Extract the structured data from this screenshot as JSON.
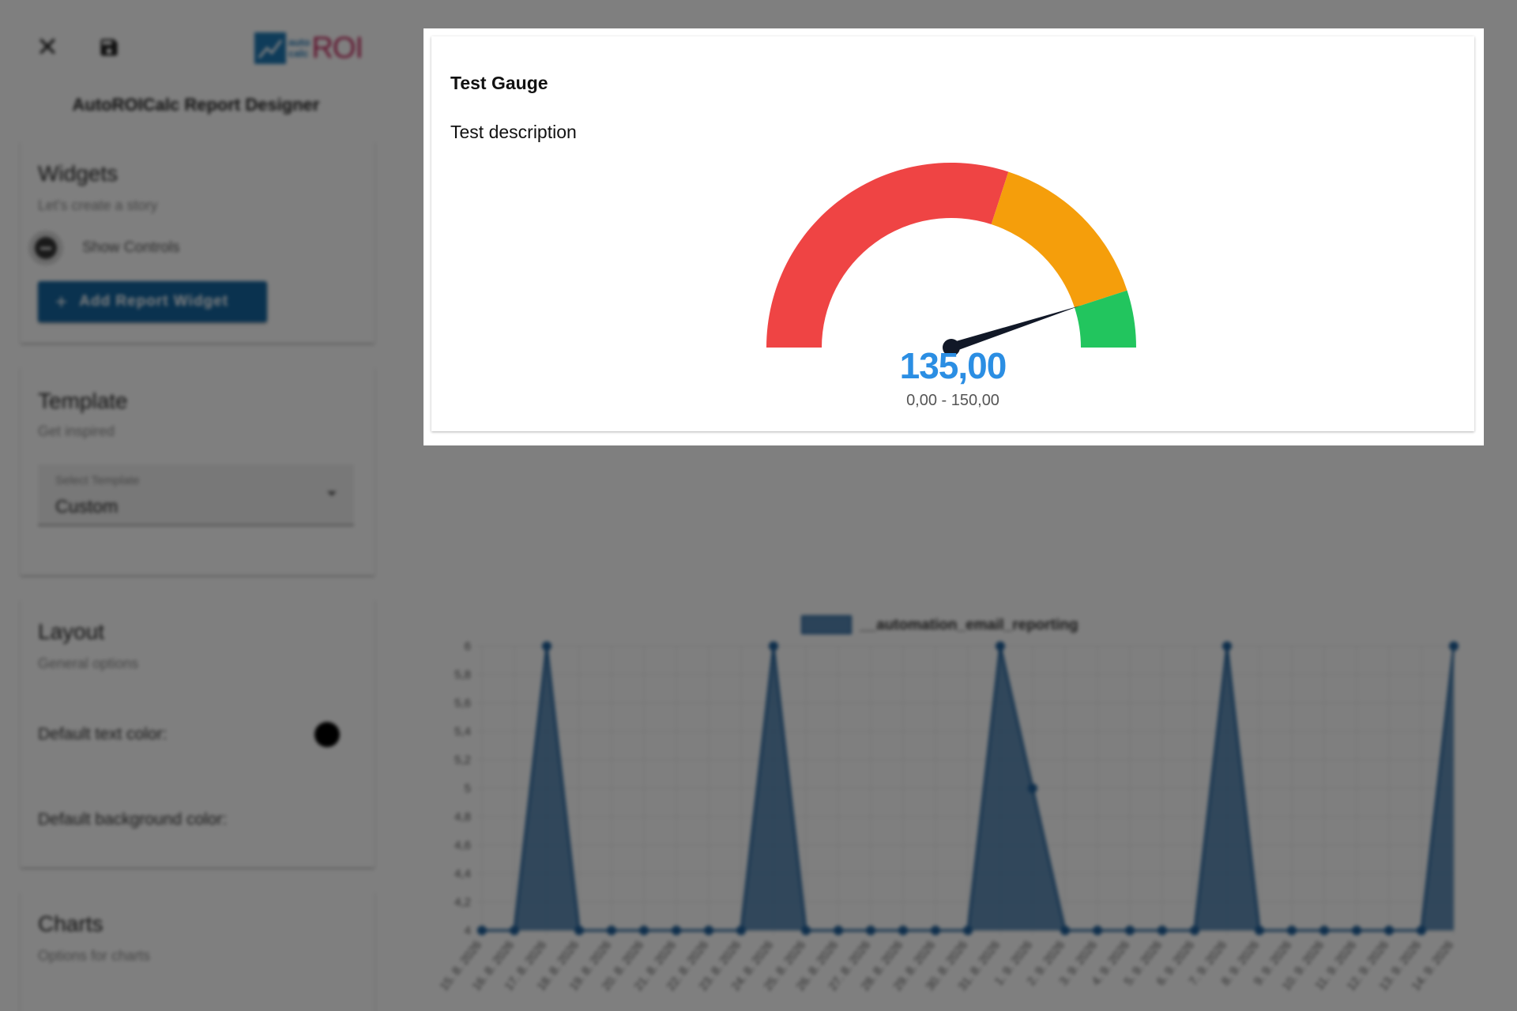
{
  "app": {
    "title": "AutoROICalc Report Designer",
    "logo": {
      "small_top": "auto",
      "small_bottom": "calc",
      "big": "ROI"
    }
  },
  "toolbar": {
    "close_icon": "close-icon",
    "save_icon": "save-icon"
  },
  "widgets_section": {
    "title": "Widgets",
    "subtitle": "Let's create a story",
    "toggle_label": "Show Controls",
    "add_button_label": "Add Report Widget"
  },
  "template_section": {
    "title": "Template",
    "subtitle": "Get inspired",
    "select_label": "Select Template",
    "select_value": "Custom"
  },
  "layout_section": {
    "title": "Layout",
    "subtitle": "General options",
    "text_color_label": "Default text color:",
    "text_color": "#000000",
    "bg_color_label": "Default background color:"
  },
  "charts_section": {
    "title": "Charts",
    "subtitle": "Options for charts"
  },
  "gauge": {
    "title": "Test Gauge",
    "description": "Test description",
    "value": 135,
    "value_label": "135,00",
    "min": 0,
    "max": 150,
    "range_label": "0,00 - 150,00",
    "colors": {
      "low": "#ef4444",
      "mid": "#f59e0b",
      "high": "#22c55e",
      "needle": "#111827",
      "value": "#2b8ee3"
    }
  },
  "chart_data": {
    "type": "area",
    "title": "",
    "legend": "__automation_email_reporting",
    "legend_position": "top",
    "categories": [
      "15. 8. 2026",
      "16. 8. 2026",
      "17. 8. 2026",
      "18. 8. 2026",
      "19. 8. 2026",
      "20. 8. 2026",
      "21. 8. 2026",
      "22. 8. 2026",
      "23. 8. 2026",
      "24. 8. 2026",
      "25. 8. 2026",
      "26. 8. 2026",
      "27. 8. 2026",
      "28. 8. 2026",
      "29. 8. 2026",
      "30. 8. 2026",
      "31. 8. 2026",
      "1. 9. 2026",
      "2. 9. 2026",
      "3. 9. 2026",
      "4. 9. 2026",
      "5. 9. 2026",
      "6. 9. 2026",
      "7. 9. 2026",
      "8. 9. 2026",
      "9. 9. 2026",
      "10. 9. 2026",
      "11. 9. 2026",
      "12. 9. 2026",
      "13. 9. 2026",
      "14. 9. 2026"
    ],
    "series": [
      {
        "name": "__automation_email_reporting",
        "values": [
          4,
          4,
          6,
          4,
          4,
          4,
          4,
          4,
          4,
          6,
          4,
          4,
          4,
          4,
          4,
          4,
          6,
          5,
          4,
          4,
          4,
          4,
          4,
          6,
          4,
          4,
          4,
          4,
          4,
          4,
          6
        ]
      }
    ],
    "ylim": [
      4,
      6
    ],
    "yticks": [
      "4",
      "4,2",
      "4,4",
      "4,6",
      "4,8",
      "5",
      "5,2",
      "5,4",
      "5,6",
      "5,8",
      "6"
    ],
    "grid": true,
    "color": "#1f5f99"
  }
}
